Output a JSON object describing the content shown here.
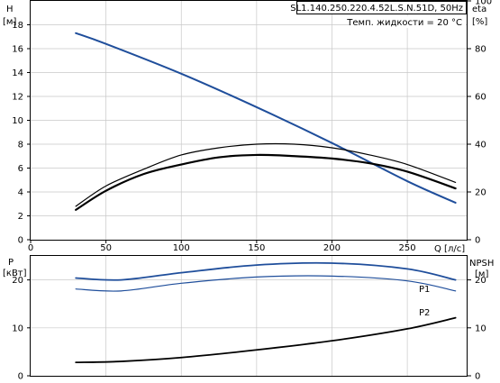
{
  "chart_data": [
    {
      "type": "line",
      "name": "head-efficiency",
      "title": "SL1.140.250.220.4.52L.S.N.51D, 50Hz",
      "subtitle": "Темп. жидкости = 20 °C",
      "y_left_label": "H",
      "y_left_unit": "[м]",
      "y_right_label": "eta",
      "y_right_unit": "[%]",
      "x_label": "Q [л/с]",
      "xlim": [
        0,
        290
      ],
      "ylim_left": [
        0,
        20
      ],
      "ylim_right": [
        0,
        100
      ],
      "x_ticks": [
        0,
        50,
        100,
        150,
        200,
        250
      ],
      "y_left_ticks": [
        0,
        2,
        4,
        6,
        8,
        10,
        12,
        14,
        16,
        18
      ],
      "y_right_ticks": [
        0,
        20,
        40,
        60,
        80,
        100
      ],
      "grid": true,
      "series": [
        {
          "axis": "left",
          "color": "#1f4e9b",
          "width": 2,
          "x": [
            30,
            50,
            100,
            150,
            200,
            250,
            282
          ],
          "y": [
            17.3,
            16.4,
            13.9,
            11.1,
            8.1,
            4.9,
            3.1
          ]
        },
        {
          "axis": "left",
          "color": "#000000",
          "width": 1.2,
          "x": [
            30,
            50,
            75,
            100,
            125,
            150,
            175,
            200,
            225,
            250,
            282
          ],
          "y": [
            2.8,
            4.5,
            5.9,
            7.1,
            7.7,
            8.0,
            8.0,
            7.7,
            7.1,
            6.3,
            4.8
          ]
        },
        {
          "axis": "left",
          "color": "#000000",
          "width": 2.2,
          "x": [
            30,
            50,
            75,
            100,
            125,
            150,
            175,
            200,
            225,
            250,
            282
          ],
          "y": [
            2.5,
            4.1,
            5.5,
            6.3,
            6.9,
            7.1,
            7.0,
            6.8,
            6.4,
            5.7,
            4.3
          ]
        }
      ]
    },
    {
      "type": "line",
      "name": "power-npsh",
      "y_left_label": "P",
      "y_left_unit": "[кВт]",
      "y_right_label": "NPSH",
      "y_right_unit": "[м]",
      "xlim": [
        0,
        290
      ],
      "ylim_left": [
        0,
        25
      ],
      "ylim_right": [
        0,
        25
      ],
      "y_left_ticks": [
        0,
        10,
        20
      ],
      "y_right_ticks": [
        0,
        10,
        20
      ],
      "grid": true,
      "series": [
        {
          "name": "P1",
          "axis": "left",
          "color": "#1f4e9b",
          "width": 1.8,
          "x": [
            30,
            60,
            100,
            150,
            200,
            250,
            282
          ],
          "y": [
            20.4,
            20.0,
            21.5,
            23.1,
            23.5,
            22.3,
            20.0
          ]
        },
        {
          "name": "P2",
          "axis": "left",
          "color": "#1f4e9b",
          "width": 1.2,
          "x": [
            30,
            60,
            100,
            150,
            200,
            250,
            282
          ],
          "y": [
            18.1,
            17.7,
            19.3,
            20.6,
            20.8,
            19.8,
            17.7
          ]
        },
        {
          "axis": "right",
          "color": "#000000",
          "width": 1.8,
          "x": [
            30,
            60,
            100,
            150,
            200,
            250,
            282
          ],
          "y": [
            2.8,
            3.0,
            3.8,
            5.4,
            7.3,
            9.8,
            12.1
          ]
        }
      ]
    }
  ]
}
